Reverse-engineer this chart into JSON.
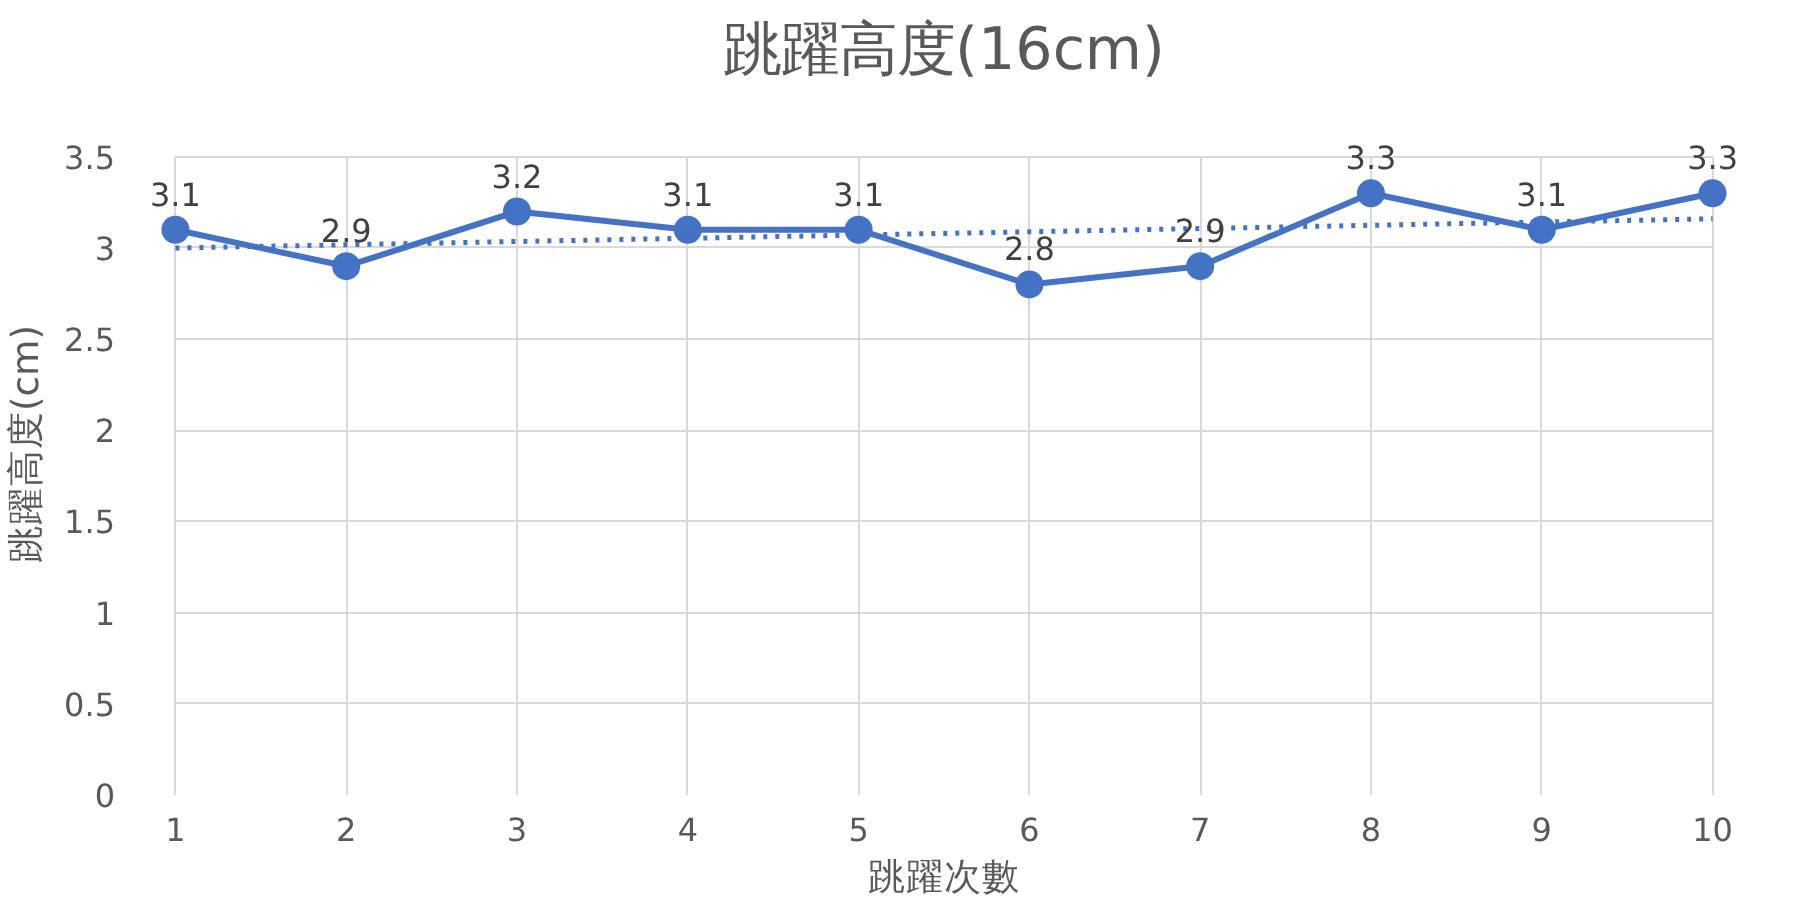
{
  "chart_data": {
    "type": "line",
    "title": "跳躍高度(16cm)",
    "xlabel": "跳躍次數",
    "ylabel": "跳躍高度(cm)",
    "x": [
      1,
      2,
      3,
      4,
      5,
      6,
      7,
      8,
      9,
      10
    ],
    "series": [
      {
        "color": "#4472c4",
        "values": [
          3.1,
          2.9,
          3.2,
          3.1,
          3.1,
          2.8,
          2.9,
          3.3,
          3.1,
          3.3
        ],
        "marker": "circle",
        "line_style": "solid",
        "data_labels": true
      },
      {
        "color": "#4472c4",
        "x": [
          1,
          10
        ],
        "values": [
          3.0,
          3.16
        ],
        "marker": "none",
        "line_style": "dotted"
      }
    ],
    "xlim": [
      1,
      10
    ],
    "xticks": [
      1,
      2,
      3,
      4,
      5,
      6,
      7,
      8,
      9,
      10
    ],
    "ylim": [
      0,
      3.5
    ],
    "yticks": [
      0,
      0.5,
      1,
      1.5,
      2,
      2.5,
      3,
      3.5
    ],
    "grid": true
  }
}
